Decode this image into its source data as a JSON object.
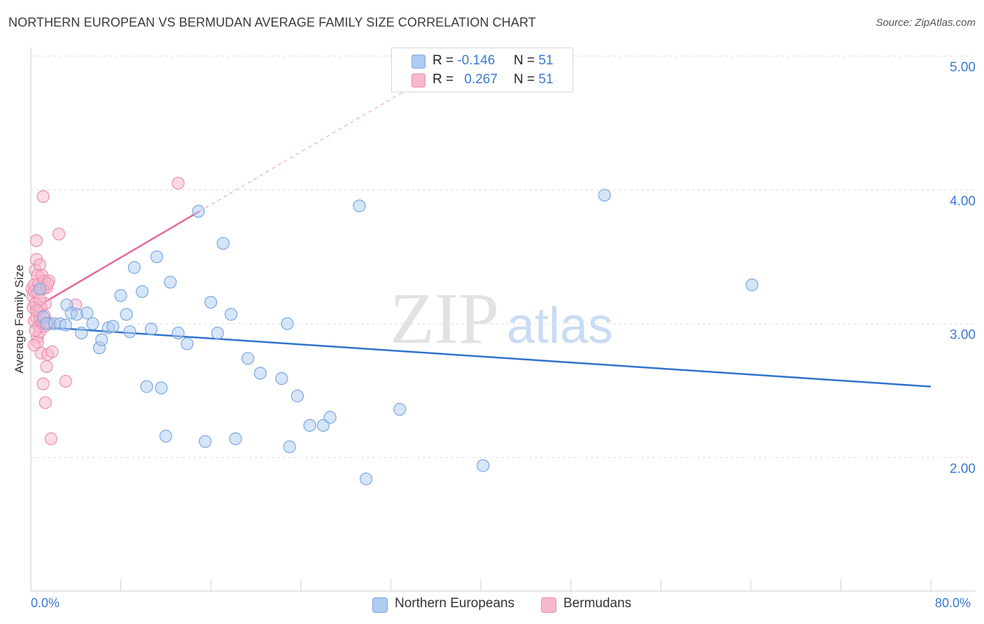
{
  "header": {
    "title": "NORTHERN EUROPEAN VS BERMUDAN AVERAGE FAMILY SIZE CORRELATION CHART",
    "source": "Source: ZipAtlas.com"
  },
  "legend_top": {
    "rows": [
      {
        "r_label": "R =",
        "r_value": "-0.146",
        "n_label": "N =",
        "n_value": "51"
      },
      {
        "r_label": "R =",
        "r_value": "0.267",
        "n_label": "N =",
        "n_value": "51"
      }
    ]
  },
  "colors": {
    "blue_fill": "#aecbf1",
    "blue_stroke": "#7aa7e0",
    "blue_line": "#2f73cc",
    "pink_fill": "#f6b8cb",
    "pink_stroke": "#eb8fae",
    "pink_line": "#e4699a",
    "axis_text": "#3a78d4",
    "grid": "#dddddd"
  },
  "watermark": {
    "zip": "ZIP",
    "atlas": "atlas"
  },
  "chart_data": {
    "type": "scatter",
    "title": "NORTHERN EUROPEAN VS BERMUDAN AVERAGE FAMILY SIZE CORRELATION CHART",
    "xlabel": "",
    "ylabel": "Average Family Size",
    "x_tick_labels": [
      "0.0%",
      "80.0%"
    ],
    "y_tick_labels": [
      "2.00",
      "3.00",
      "4.00",
      "5.00"
    ],
    "y_ticks": [
      2,
      3,
      4,
      5
    ],
    "xlim": [
      0,
      80
    ],
    "ylim": [
      1.0,
      5.1
    ],
    "grid": true,
    "legend_placement": "bottom-center",
    "series": [
      {
        "name": "Northern Europeans",
        "color": "#aecbf1",
        "points": [
          [
            0.8,
            3.26
          ],
          [
            1.1,
            3.05
          ],
          [
            1.4,
            3.0
          ],
          [
            2.1,
            3.0
          ],
          [
            2.6,
            3.0
          ],
          [
            3.2,
            3.14
          ],
          [
            3.6,
            3.08
          ],
          [
            4.1,
            3.07
          ],
          [
            4.5,
            2.93
          ],
          [
            5.0,
            3.08
          ],
          [
            5.5,
            3.0
          ],
          [
            6.1,
            2.82
          ],
          [
            6.3,
            2.88
          ],
          [
            6.9,
            2.97
          ],
          [
            7.3,
            2.98
          ],
          [
            8.0,
            3.21
          ],
          [
            8.5,
            3.07
          ],
          [
            8.8,
            2.94
          ],
          [
            9.2,
            3.42
          ],
          [
            9.9,
            3.24
          ],
          [
            10.3,
            2.53
          ],
          [
            10.7,
            2.96
          ],
          [
            11.2,
            3.5
          ],
          [
            11.6,
            2.52
          ],
          [
            12.0,
            2.16
          ],
          [
            12.4,
            3.31
          ],
          [
            13.1,
            2.93
          ],
          [
            13.9,
            2.85
          ],
          [
            14.9,
            3.84
          ],
          [
            15.5,
            2.12
          ],
          [
            16.0,
            3.16
          ],
          [
            16.6,
            2.93
          ],
          [
            17.1,
            3.6
          ],
          [
            17.8,
            3.07
          ],
          [
            18.2,
            2.14
          ],
          [
            19.3,
            2.74
          ],
          [
            20.4,
            2.63
          ],
          [
            22.3,
            2.59
          ],
          [
            22.8,
            3.0
          ],
          [
            23.0,
            2.08
          ],
          [
            23.7,
            2.46
          ],
          [
            24.8,
            2.24
          ],
          [
            26.0,
            2.24
          ],
          [
            26.6,
            2.3
          ],
          [
            29.2,
            3.88
          ],
          [
            29.8,
            1.84
          ],
          [
            32.8,
            2.36
          ],
          [
            40.2,
            1.94
          ],
          [
            51.0,
            3.96
          ],
          [
            64.1,
            3.29
          ],
          [
            3.1,
            2.99
          ]
        ],
        "trend": {
          "x": [
            0,
            80
          ],
          "y": [
            2.98,
            2.53
          ]
        }
      },
      {
        "name": "Bermudans",
        "color": "#f6b8cb",
        "points": [
          [
            0.1,
            3.26
          ],
          [
            0.2,
            3.2
          ],
          [
            0.2,
            3.12
          ],
          [
            0.3,
            3.29
          ],
          [
            0.3,
            3.24
          ],
          [
            0.3,
            3.02
          ],
          [
            0.4,
            3.4
          ],
          [
            0.4,
            3.15
          ],
          [
            0.5,
            3.62
          ],
          [
            0.5,
            3.48
          ],
          [
            0.5,
            3.05
          ],
          [
            0.6,
            3.36
          ],
          [
            0.6,
            2.9
          ],
          [
            0.6,
            2.86
          ],
          [
            0.7,
            3.3
          ],
          [
            0.7,
            3.1
          ],
          [
            0.7,
            2.98
          ],
          [
            0.8,
            3.44
          ],
          [
            0.8,
            3.05
          ],
          [
            0.8,
            2.94
          ],
          [
            0.9,
            3.26
          ],
          [
            0.9,
            2.78
          ],
          [
            1.0,
            3.36
          ],
          [
            1.0,
            3.0
          ],
          [
            1.1,
            3.95
          ],
          [
            1.1,
            3.26
          ],
          [
            1.1,
            2.55
          ],
          [
            1.2,
            3.32
          ],
          [
            1.2,
            2.98
          ],
          [
            1.3,
            3.15
          ],
          [
            1.3,
            2.41
          ],
          [
            1.4,
            3.27
          ],
          [
            1.4,
            2.68
          ],
          [
            1.5,
            3.01
          ],
          [
            1.5,
            2.77
          ],
          [
            1.6,
            3.32
          ],
          [
            1.7,
            3.0
          ],
          [
            1.8,
            2.14
          ],
          [
            1.9,
            2.79
          ],
          [
            2.5,
            3.67
          ],
          [
            3.1,
            2.57
          ],
          [
            4.0,
            3.14
          ],
          [
            13.1,
            4.05
          ],
          [
            0.4,
            2.95
          ],
          [
            0.6,
            3.23
          ],
          [
            0.9,
            3.12
          ],
          [
            1.2,
            3.06
          ],
          [
            0.3,
            2.84
          ],
          [
            0.8,
            3.18
          ],
          [
            1.5,
            3.3
          ],
          [
            0.5,
            3.1
          ]
        ],
        "trend": {
          "x": [
            0,
            15
          ],
          "y": [
            3.1,
            3.84
          ]
        },
        "trend_extension": {
          "x": [
            15,
            34.5
          ],
          "y": [
            3.84,
            4.8
          ]
        }
      }
    ]
  }
}
